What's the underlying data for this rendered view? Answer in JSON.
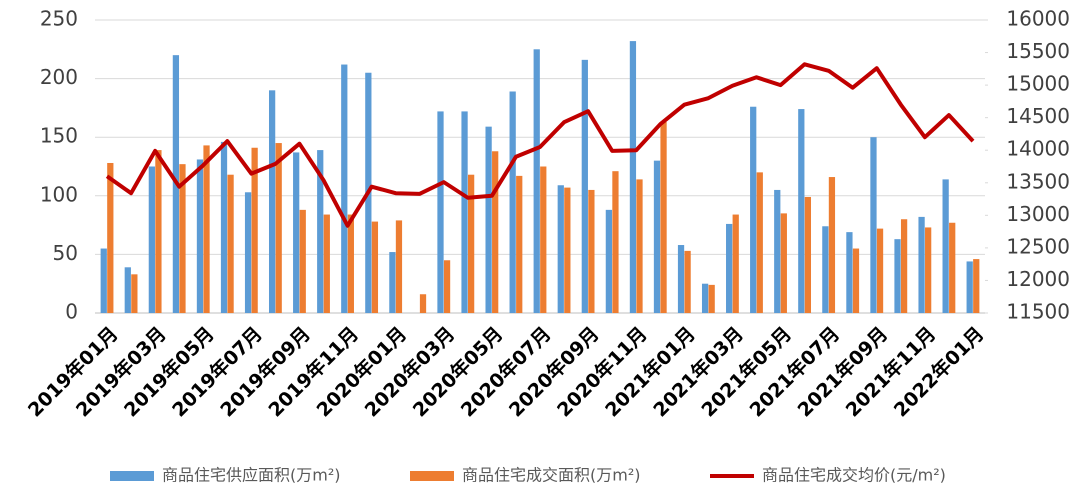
{
  "chart_data": {
    "type": "bar-line",
    "categories": [
      "2019年01月",
      null,
      "2019年03月",
      null,
      "2019年05月",
      null,
      "2019年07月",
      null,
      "2019年09月",
      null,
      "2019年11月",
      null,
      "2020年01月",
      null,
      "2020年03月",
      null,
      "2020年05月",
      null,
      "2020年07月",
      null,
      "2020年09月",
      null,
      "2020年11月",
      null,
      "2021年01月",
      null,
      "2021年03月",
      null,
      "2021年05月",
      null,
      "2021年07月",
      null,
      "2021年09月",
      null,
      "2021年11月",
      null,
      "2022年01月"
    ],
    "series": [
      {
        "name": "商品住宅供应面积(万m²)",
        "type": "bar",
        "color": "#5b9bd5",
        "values": [
          55,
          39,
          125,
          220,
          131,
          146,
          103,
          190,
          137,
          139,
          212,
          205,
          52,
          0,
          172,
          172,
          159,
          189,
          225,
          109,
          216,
          88,
          232,
          130,
          58,
          25,
          76,
          176,
          105,
          174,
          74,
          69,
          150,
          63,
          82,
          114,
          44
        ]
      },
      {
        "name": "商品住宅成交面积(万m²)",
        "type": "bar",
        "color": "#ed7d31",
        "values": [
          128,
          33,
          139,
          127,
          143,
          118,
          141,
          145,
          88,
          84,
          84,
          78,
          79,
          16,
          45,
          118,
          138,
          117,
          125,
          107,
          105,
          121,
          114,
          163,
          53,
          24,
          84,
          120,
          85,
          99,
          116,
          55,
          72,
          80,
          73,
          77,
          46
        ]
      },
      {
        "name": "商品住宅成交均价(元/m²)",
        "type": "line",
        "axis": "y2",
        "color": "#c00000",
        "values": [
          13600,
          13340,
          13990,
          13440,
          13770,
          14140,
          13640,
          13790,
          14100,
          13540,
          12840,
          13440,
          13340,
          13330,
          13510,
          13270,
          13300,
          13900,
          14050,
          14430,
          14600,
          13990,
          14000,
          14400,
          14700,
          14800,
          14990,
          15120,
          15000,
          15320,
          15220,
          14960,
          15260,
          14700,
          14200,
          14540,
          14140
        ]
      }
    ],
    "ylim": [
      0,
      250
    ],
    "yticks": [
      0,
      50,
      100,
      150,
      200,
      250
    ],
    "y2lim": [
      11500,
      16000
    ],
    "y2ticks": [
      11500,
      12000,
      12500,
      13000,
      13500,
      14000,
      14500,
      15000,
      15500,
      16000
    ],
    "grid": true,
    "legend": "bottom"
  }
}
